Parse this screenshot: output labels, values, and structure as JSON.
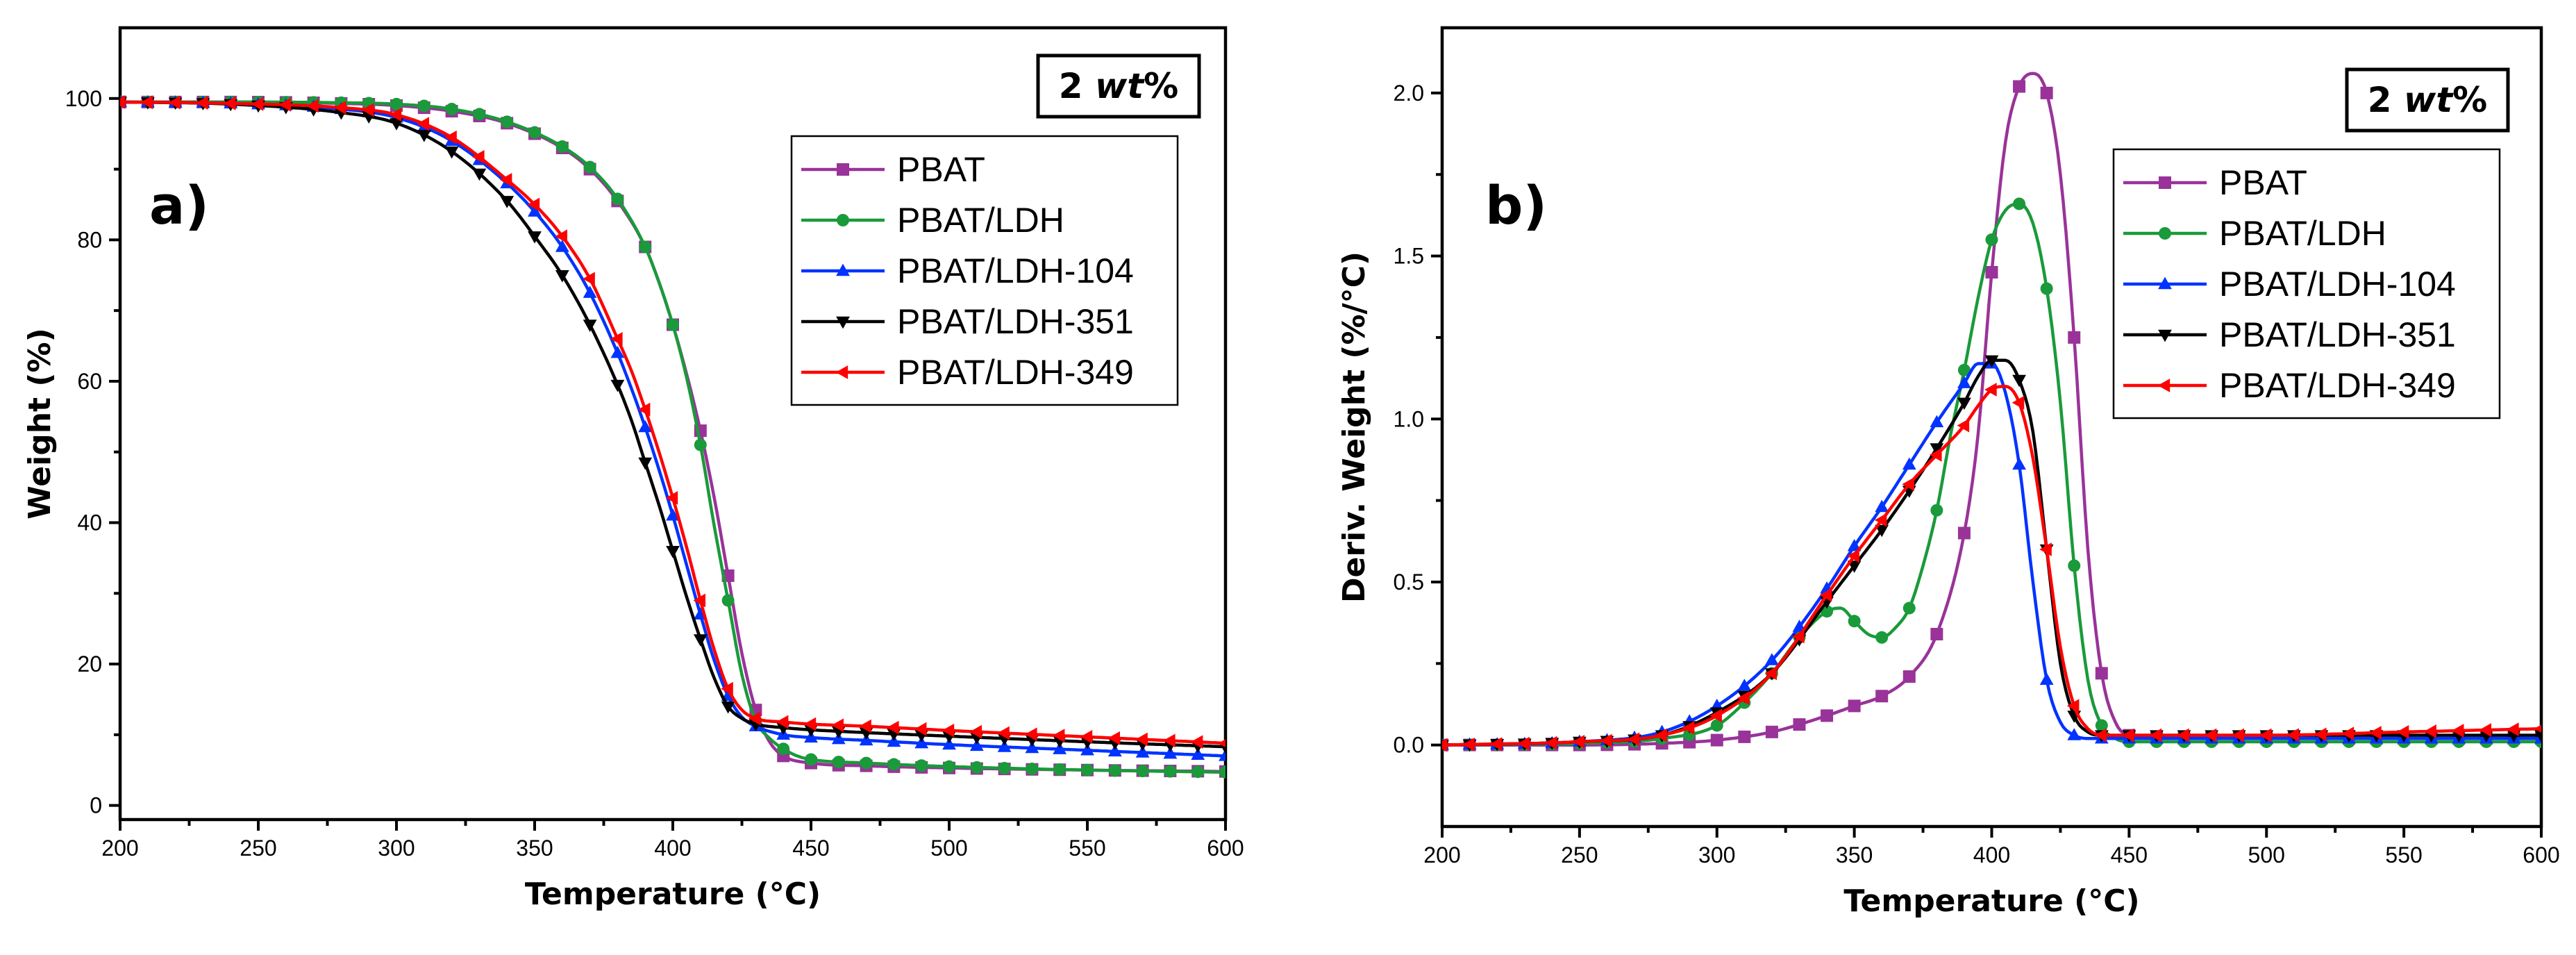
{
  "chart_data": [
    {
      "type": "line",
      "panel_label": "a)",
      "badge": {
        "num": "2",
        "unit": "wt",
        "pct": "%"
      },
      "xlabel": "Temperature (°C)",
      "ylabel": "Weight (%)",
      "xlim": [
        200,
        600
      ],
      "ylim": [
        -2,
        110
      ],
      "xticks": [
        200,
        250,
        300,
        350,
        400,
        450,
        500,
        550,
        600
      ],
      "yticks": [
        0,
        20,
        40,
        60,
        80,
        100
      ],
      "xtick_labels": [
        "200",
        "250",
        "300",
        "350",
        "400",
        "450",
        "500",
        "550",
        "600"
      ],
      "ytick_labels": [
        "0",
        "20",
        "40",
        "60",
        "80",
        "100"
      ],
      "legend_position": "top-right",
      "series": [
        {
          "name": "PBAT",
          "color": "#993399",
          "marker": "square",
          "x": [
            200,
            240,
            280,
            300,
            320,
            340,
            360,
            370,
            380,
            390,
            395,
            400,
            405,
            410,
            415,
            420,
            425,
            430,
            435,
            440,
            450,
            470,
            500,
            550,
            600
          ],
          "y": [
            99.5,
            99.5,
            99.3,
            99.0,
            98.2,
            96.5,
            93.0,
            90.0,
            85.5,
            79.0,
            74.0,
            68.0,
            61.0,
            53.0,
            43.5,
            32.5,
            21.5,
            13.5,
            9.0,
            7.0,
            6.0,
            5.6,
            5.3,
            5.0,
            4.8
          ]
        },
        {
          "name": "PBAT/LDH",
          "color": "#1a9a3a",
          "marker": "circle",
          "x": [
            200,
            240,
            280,
            300,
            320,
            340,
            360,
            370,
            380,
            390,
            395,
            400,
            405,
            410,
            415,
            420,
            425,
            430,
            435,
            440,
            445,
            450,
            470,
            500,
            550,
            600
          ],
          "y": [
            99.5,
            99.5,
            99.4,
            99.2,
            98.5,
            96.7,
            93.2,
            90.3,
            85.8,
            79.0,
            74.0,
            68.0,
            60.5,
            51.0,
            39.5,
            29.0,
            18.5,
            12.0,
            9.5,
            8.0,
            7.0,
            6.5,
            6.0,
            5.5,
            5.0,
            4.7
          ]
        },
        {
          "name": "PBAT/LDH-104",
          "color": "#0033ff",
          "marker": "triangle-up",
          "x": [
            200,
            240,
            280,
            300,
            320,
            340,
            350,
            360,
            370,
            380,
            385,
            390,
            395,
            400,
            405,
            410,
            415,
            420,
            425,
            430,
            440,
            450,
            470,
            500,
            550,
            600
          ],
          "y": [
            99.5,
            99.3,
            98.5,
            97.3,
            94.0,
            88.0,
            84.0,
            79.0,
            72.5,
            64.0,
            59.0,
            53.5,
            47.5,
            41.0,
            34.0,
            27.0,
            20.5,
            15.5,
            12.5,
            11.2,
            10.0,
            9.6,
            9.2,
            8.6,
            7.8,
            7.0
          ]
        },
        {
          "name": "PBAT/LDH-351",
          "color": "#000000",
          "marker": "triangle-down",
          "x": [
            200,
            240,
            280,
            300,
            320,
            340,
            350,
            360,
            370,
            380,
            385,
            390,
            395,
            400,
            405,
            410,
            415,
            420,
            425,
            430,
            440,
            450,
            470,
            500,
            550,
            600
          ],
          "y": [
            99.5,
            99.2,
            98.0,
            96.5,
            92.5,
            85.5,
            80.5,
            75.0,
            68.0,
            59.5,
            54.5,
            48.5,
            42.5,
            36.0,
            29.5,
            23.5,
            18.0,
            14.0,
            12.3,
            11.5,
            11.0,
            10.7,
            10.3,
            9.8,
            9.0,
            8.3
          ]
        },
        {
          "name": "PBAT/LDH-349",
          "color": "#ff0000",
          "marker": "triangle-left",
          "x": [
            200,
            240,
            280,
            300,
            320,
            340,
            350,
            360,
            370,
            380,
            385,
            390,
            395,
            400,
            405,
            410,
            415,
            420,
            425,
            430,
            440,
            450,
            470,
            500,
            550,
            600
          ],
          "y": [
            99.5,
            99.3,
            98.7,
            97.7,
            94.5,
            88.5,
            85.0,
            80.5,
            74.5,
            66.0,
            61.5,
            56.0,
            50.0,
            43.5,
            36.5,
            29.0,
            22.0,
            16.5,
            13.5,
            12.3,
            11.8,
            11.5,
            11.2,
            10.6,
            9.7,
            8.8
          ]
        }
      ]
    },
    {
      "type": "line",
      "panel_label": "b)",
      "badge": {
        "num": "2",
        "unit": "wt",
        "pct": "%"
      },
      "xlabel": "Temperature (°C)",
      "ylabel": "Deriv. Weight (%/°C)",
      "xlim": [
        200,
        600
      ],
      "ylim": [
        -0.25,
        2.2
      ],
      "xticks": [
        200,
        250,
        300,
        350,
        400,
        450,
        500,
        550,
        600
      ],
      "yticks": [
        0.0,
        0.5,
        1.0,
        1.5,
        2.0
      ],
      "xtick_labels": [
        "200",
        "250",
        "300",
        "350",
        "400",
        "450",
        "500",
        "550",
        "600"
      ],
      "ytick_labels": [
        "0.0",
        "0.5",
        "1.0",
        "1.5",
        "2.0"
      ],
      "legend_position": "top-right",
      "series": [
        {
          "name": "PBAT",
          "color": "#993399",
          "marker": "square",
          "x": [
            200,
            250,
            280,
            300,
            320,
            340,
            350,
            360,
            370,
            380,
            390,
            395,
            400,
            405,
            410,
            415,
            420,
            425,
            430,
            435,
            440,
            445,
            450,
            470,
            500,
            550,
            600
          ],
          "y": [
            0,
            0,
            0.005,
            0.015,
            0.04,
            0.09,
            0.12,
            0.15,
            0.21,
            0.34,
            0.65,
            0.95,
            1.45,
            1.85,
            2.02,
            2.06,
            2.0,
            1.75,
            1.25,
            0.6,
            0.22,
            0.07,
            0.03,
            0.02,
            0.02,
            0.02,
            0.02
          ]
        },
        {
          "name": "PBAT/LDH",
          "color": "#1a9a3a",
          "marker": "circle",
          "x": [
            200,
            250,
            280,
            300,
            310,
            320,
            330,
            340,
            345,
            350,
            355,
            360,
            365,
            370,
            375,
            380,
            385,
            390,
            395,
            400,
            405,
            410,
            415,
            420,
            425,
            430,
            435,
            440,
            445,
            450,
            470,
            500,
            550,
            600
          ],
          "y": [
            0,
            0.005,
            0.02,
            0.06,
            0.13,
            0.22,
            0.33,
            0.41,
            0.42,
            0.38,
            0.34,
            0.33,
            0.36,
            0.42,
            0.55,
            0.72,
            0.95,
            1.15,
            1.37,
            1.55,
            1.64,
            1.66,
            1.6,
            1.4,
            1.05,
            0.55,
            0.2,
            0.06,
            0.02,
            0.01,
            0.01,
            0.01,
            0.01,
            0.01
          ]
        },
        {
          "name": "PBAT/LDH-104",
          "color": "#0033ff",
          "marker": "triangle-up",
          "x": [
            200,
            250,
            280,
            300,
            320,
            340,
            350,
            360,
            370,
            380,
            390,
            395,
            400,
            405,
            410,
            415,
            420,
            425,
            430,
            435,
            440,
            450,
            470,
            500,
            550,
            600
          ],
          "y": [
            0,
            0.01,
            0.04,
            0.12,
            0.26,
            0.48,
            0.61,
            0.73,
            0.86,
            0.99,
            1.11,
            1.17,
            1.17,
            1.08,
            0.86,
            0.5,
            0.2,
            0.07,
            0.03,
            0.02,
            0.02,
            0.02,
            0.02,
            0.02,
            0.02,
            0.02
          ]
        },
        {
          "name": "PBAT/LDH-351",
          "color": "#000000",
          "marker": "triangle-down",
          "x": [
            200,
            250,
            280,
            300,
            320,
            340,
            350,
            360,
            370,
            380,
            390,
            395,
            400,
            405,
            410,
            415,
            420,
            425,
            430,
            435,
            440,
            450,
            470,
            500,
            550,
            600
          ],
          "y": [
            0,
            0.01,
            0.03,
            0.1,
            0.22,
            0.44,
            0.55,
            0.66,
            0.78,
            0.91,
            1.05,
            1.13,
            1.18,
            1.18,
            1.12,
            0.96,
            0.6,
            0.25,
            0.09,
            0.04,
            0.03,
            0.03,
            0.03,
            0.03,
            0.03,
            0.03
          ]
        },
        {
          "name": "PBAT/LDH-349",
          "color": "#ff0000",
          "marker": "triangle-left",
          "x": [
            200,
            250,
            280,
            300,
            320,
            340,
            350,
            360,
            370,
            380,
            390,
            395,
            400,
            405,
            410,
            415,
            420,
            425,
            430,
            435,
            440,
            450,
            470,
            500,
            550,
            600
          ],
          "y": [
            0,
            0.01,
            0.03,
            0.09,
            0.22,
            0.46,
            0.58,
            0.69,
            0.8,
            0.89,
            0.98,
            1.04,
            1.09,
            1.1,
            1.05,
            0.88,
            0.6,
            0.3,
            0.12,
            0.05,
            0.03,
            0.03,
            0.03,
            0.03,
            0.04,
            0.05
          ]
        }
      ]
    }
  ]
}
